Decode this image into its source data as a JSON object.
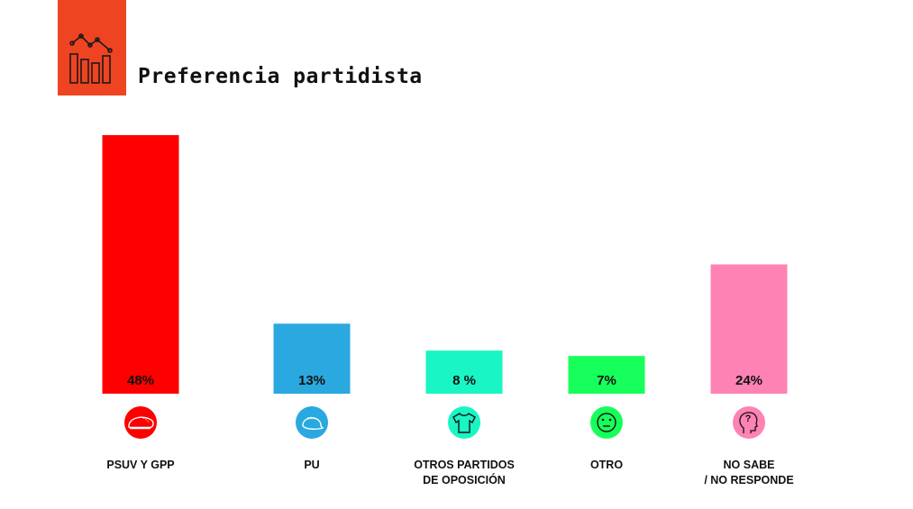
{
  "title": "Preferencia partidista",
  "colors": {
    "logo_bg": "#ee4422",
    "text": "#111111"
  },
  "chart_data": {
    "type": "bar",
    "title": "Preferencia partidista",
    "xlabel": "",
    "ylabel": "",
    "ylim": [
      0,
      50
    ],
    "grid": false,
    "categories": [
      {
        "label_lines": [
          "PSUV Y GPP"
        ],
        "value": 48,
        "display": "48%",
        "color": "#ff0000",
        "icon": "beret-icon"
      },
      {
        "label_lines": [
          "PU"
        ],
        "value": 13,
        "display": "13%",
        "color": "#2aa8e0",
        "icon": "cap-icon"
      },
      {
        "label_lines": [
          "OTROS PARTIDOS",
          "DE OPOSICIÓN"
        ],
        "value": 8,
        "display": "8 %",
        "color": "#19f5c4",
        "icon": "tshirt-icon"
      },
      {
        "label_lines": [
          "OTRO"
        ],
        "value": 7,
        "display": "7%",
        "color": "#17ff5a",
        "icon": "neutral-face-icon"
      },
      {
        "label_lines": [
          "NO SABE",
          "/ NO RESPONDE"
        ],
        "value": 24,
        "display": "24%",
        "color": "#ff82b4",
        "icon": "head-question-icon"
      }
    ]
  }
}
